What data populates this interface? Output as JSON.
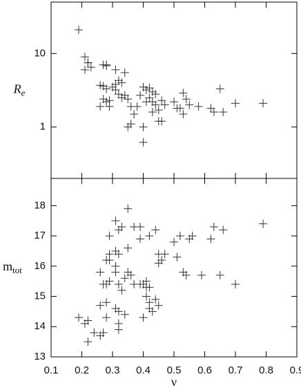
{
  "chart_data": [
    {
      "type": "scatter",
      "y_label": "R",
      "y_label_sub": "e",
      "yscale": "log",
      "show_xtick_labels": false,
      "color": "#333333",
      "xlim": [
        0.1,
        0.9
      ],
      "xticks": [
        0.1,
        0.2,
        0.3,
        0.4,
        0.5,
        0.6,
        0.7,
        0.8,
        0.9
      ],
      "ylim": [
        0.2,
        50
      ],
      "yticks": [
        1,
        10
      ],
      "x": [
        0.19,
        0.21,
        0.22,
        0.21,
        0.23,
        0.22,
        0.27,
        0.28,
        0.28,
        0.31,
        0.34,
        0.26,
        0.27,
        0.28,
        0.3,
        0.31,
        0.32,
        0.33,
        0.31,
        0.27,
        0.29,
        0.28,
        0.26,
        0.29,
        0.32,
        0.33,
        0.34,
        0.35,
        0.36,
        0.38,
        0.35,
        0.36,
        0.37,
        0.39,
        0.4,
        0.41,
        0.42,
        0.43,
        0.44,
        0.41,
        0.42,
        0.43,
        0.44,
        0.46,
        0.45,
        0.47,
        0.45,
        0.46,
        0.43,
        0.4,
        0.4,
        0.5,
        0.51,
        0.52,
        0.53,
        0.54,
        0.53,
        0.55,
        0.58,
        0.62,
        0.63,
        0.65,
        0.66,
        0.7,
        0.79
      ],
      "values": [
        21,
        9,
        7.5,
        6,
        6.5,
        7.5,
        7,
        7,
        6.8,
        6,
        5.5,
        3.7,
        3.6,
        3.3,
        3.5,
        3.8,
        4.3,
        4.0,
        3.2,
        2.4,
        2.3,
        2.2,
        1.9,
        1.9,
        2.8,
        2.5,
        2.7,
        2.4,
        1.9,
        1.9,
        1.0,
        1.1,
        1.5,
        2.7,
        3.5,
        3.2,
        3.4,
        3.0,
        2.8,
        2.2,
        2.5,
        2.2,
        2.0,
        2.3,
        1.7,
        2.0,
        1.2,
        1.2,
        1.6,
        1.0,
        0.62,
        2.2,
        1.8,
        1.8,
        2.9,
        2.4,
        1.5,
        2.0,
        1.9,
        1.8,
        1.6,
        3.3,
        1.6,
        2.1,
        2.1
      ]
    },
    {
      "type": "scatter",
      "y_label": "m",
      "y_label_sub": "tot",
      "x_label": "ν",
      "yscale": "linear",
      "show_xtick_labels": true,
      "color": "#333333",
      "xlim": [
        0.1,
        0.9
      ],
      "xticks": [
        0.1,
        0.2,
        0.3,
        0.4,
        0.5,
        0.6,
        0.7,
        0.8,
        0.9
      ],
      "ylim": [
        13,
        18.9
      ],
      "yticks": [
        13,
        14,
        15,
        16,
        17,
        18
      ],
      "x": [
        0.19,
        0.21,
        0.22,
        0.22,
        0.24,
        0.26,
        0.27,
        0.26,
        0.28,
        0.28,
        0.27,
        0.28,
        0.29,
        0.26,
        0.29,
        0.29,
        0.28,
        0.29,
        0.31,
        0.32,
        0.33,
        0.31,
        0.32,
        0.31,
        0.31,
        0.32,
        0.33,
        0.31,
        0.32,
        0.32,
        0.32,
        0.34,
        0.35,
        0.37,
        0.39,
        0.35,
        0.35,
        0.36,
        0.34,
        0.37,
        0.39,
        0.4,
        0.41,
        0.41,
        0.42,
        0.41,
        0.42,
        0.4,
        0.42,
        0.43,
        0.39,
        0.42,
        0.44,
        0.45,
        0.46,
        0.45,
        0.47,
        0.44,
        0.45,
        0.5,
        0.51,
        0.52,
        0.53,
        0.54,
        0.55,
        0.56,
        0.59,
        0.62,
        0.63,
        0.65,
        0.66,
        0.7,
        0.79
      ],
      "values": [
        14.3,
        14.1,
        14.2,
        13.5,
        13.8,
        13.7,
        13.8,
        14.7,
        14.8,
        14.3,
        15.4,
        15.4,
        15.5,
        15.8,
        16.2,
        16.4,
        16.2,
        17.0,
        17.5,
        17.2,
        17.3,
        16.5,
        16.4,
        16.0,
        15.8,
        15.4,
        15.2,
        14.6,
        14.5,
        14.1,
        13.9,
        14.4,
        17.9,
        17.3,
        17.3,
        16.6,
        15.8,
        15.7,
        15.6,
        15.4,
        15.4,
        15.4,
        15.5,
        15.3,
        15.3,
        15.0,
        14.8,
        14.3,
        14.6,
        14.5,
        16.9,
        17.0,
        17.2,
        16.4,
        16.2,
        16.1,
        16.4,
        14.9,
        14.7,
        16.8,
        16.3,
        17.0,
        15.8,
        15.7,
        16.9,
        17.0,
        15.7,
        16.9,
        17.3,
        15.7,
        17.2,
        15.4,
        17.4
      ]
    }
  ]
}
